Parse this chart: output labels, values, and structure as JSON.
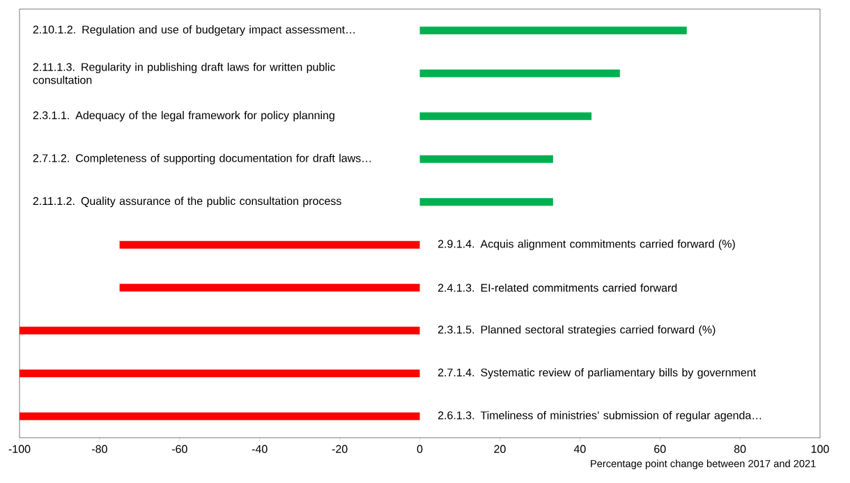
{
  "chart_data": {
    "type": "bar",
    "orientation": "horizontal",
    "categories": [
      "2.10.1.2. Regulation and use of budgetary impact assessment…",
      "2.11.1.3. Regularity in publishing draft laws for written public consultation",
      "2.3.1.1. Adequacy of the legal framework for policy planning",
      "2.7.1.2. Completeness of supporting documentation for draft laws…",
      "2.11.1.2. Quality assurance of the public consultation process",
      "2.9.1.4. Acquis alignment commitments carried forward (%)",
      "2.4.1.3. EI-related commitments carried forward",
      "2.3.1.5. Planned sectoral strategies carried forward (%)",
      "2.7.1.4. Systematic review of parliamentary bills by government",
      "2.6.1.3. Timeliness of ministries’ submission of regular agenda…"
    ],
    "values": [
      66.7,
      50,
      42.9,
      33.3,
      33.3,
      -75,
      -75,
      -100,
      -100,
      -100
    ],
    "colors": [
      "#00b050",
      "#00b050",
      "#00b050",
      "#00b050",
      "#00b050",
      "#ff0000",
      "#ff0000",
      "#ff0000",
      "#ff0000",
      "#ff0000"
    ],
    "xlim": [
      -100,
      100
    ],
    "xticks": [
      -100,
      -80,
      -60,
      -40,
      -20,
      0,
      20,
      40,
      60,
      80,
      100
    ],
    "xlabel": "Percentage point change between 2017 and 2021"
  }
}
